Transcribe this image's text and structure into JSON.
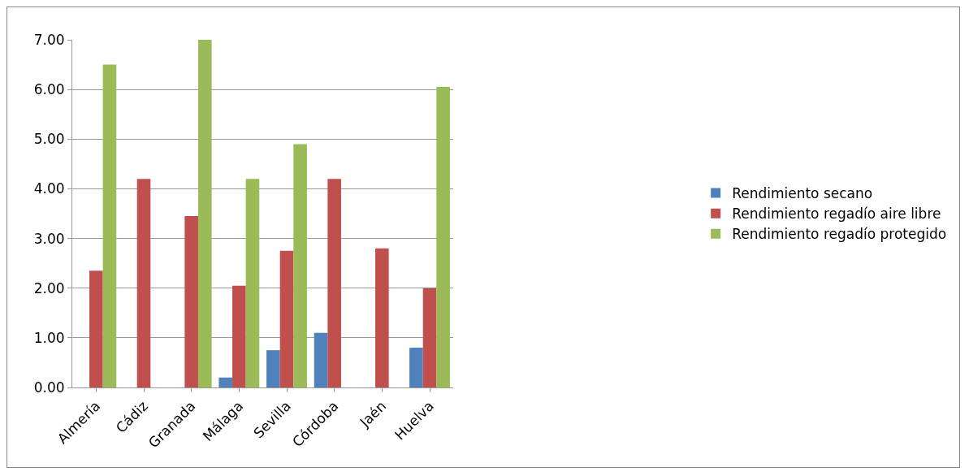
{
  "chart_data": {
    "type": "bar",
    "categories": [
      "Almería",
      "Cádiz",
      "Granada",
      "Málaga",
      "Sevilla",
      "Córdoba",
      "Jaén",
      "Huelva"
    ],
    "series": [
      {
        "name": "Rendimiento secano",
        "color": "#4f81bd",
        "values": [
          0,
          0,
          0,
          0.2,
          0.75,
          1.1,
          0,
          0.8
        ]
      },
      {
        "name": "Rendimiento regadío aire libre",
        "color": "#c0504d",
        "values": [
          2.35,
          4.2,
          3.45,
          2.05,
          2.75,
          4.2,
          2.8,
          2.0
        ]
      },
      {
        "name": "Rendimiento regadío protegido",
        "color": "#9bbb59",
        "values": [
          6.5,
          0,
          7.0,
          4.2,
          4.9,
          0,
          0,
          6.05
        ]
      }
    ],
    "ylim": [
      0,
      7
    ],
    "yticks": [
      {
        "value": 0,
        "label": "0.00"
      },
      {
        "value": 1,
        "label": "1.00"
      },
      {
        "value": 2,
        "label": "2.00"
      },
      {
        "value": 3,
        "label": "3.00"
      },
      {
        "value": 4,
        "label": "4.00"
      },
      {
        "value": 5,
        "label": "5.00"
      },
      {
        "value": 6,
        "label": "6.00"
      },
      {
        "value": 7,
        "label": "7.00"
      }
    ],
    "grid": true,
    "legend": "right"
  }
}
